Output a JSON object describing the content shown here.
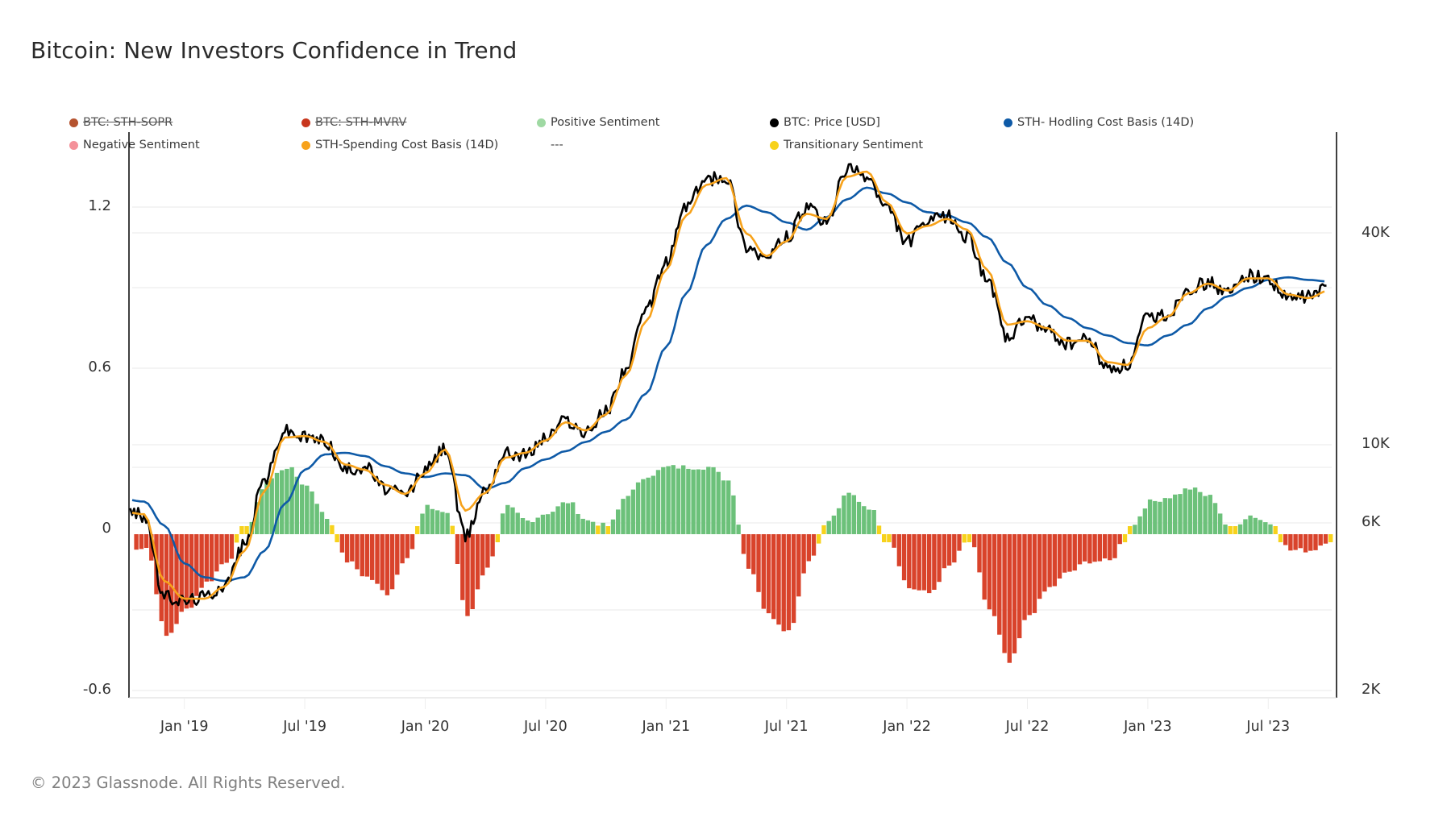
{
  "title": "Bitcoin: New Investors Confidence in Trend",
  "footer": "© 2023 Glassnode. All Rights Reserved.",
  "legend": [
    {
      "label": "BTC: STH-SOPR",
      "color": "#b5532f",
      "disabled": true
    },
    {
      "label": "BTC: STH-MVRV",
      "color": "#c8361d",
      "disabled": true
    },
    {
      "label": "Positive Sentiment",
      "color": "#9fd9a3",
      "disabled": false
    },
    {
      "label": "BTC: Price [USD]",
      "color": "#000000",
      "disabled": false
    },
    {
      "label": "STH- Hodling Cost Basis (14D)",
      "color": "#0e5aa7",
      "disabled": false
    },
    {
      "label": "Negative Sentiment",
      "color": "#f4919a",
      "disabled": false
    },
    {
      "label": "STH-Spending Cost Basis (14D)",
      "color": "#f7a21b",
      "disabled": false
    },
    {
      "label": "---",
      "color": null,
      "disabled": false
    },
    {
      "label": "Transitionary Sentiment",
      "color": "#f7d21b",
      "disabled": false
    }
  ],
  "chart_data": {
    "type": "line",
    "title": "Bitcoin: New Investors Confidence in Trend",
    "x_range": [
      "2018-10",
      "2023-10"
    ],
    "x_ticks": [
      "Jan '19",
      "Jul '19",
      "Jan '20",
      "Jul '20",
      "Jan '21",
      "Jul '21",
      "Jan '22",
      "Jul '22",
      "Jan '23",
      "Jul '23"
    ],
    "left_axis": {
      "ticks": [
        "1.2",
        "0.6",
        "0",
        "-0.6"
      ],
      "tick_values": [
        1.2,
        0.6,
        0,
        -0.6
      ],
      "range": [
        -0.6,
        1.4
      ]
    },
    "right_axis": {
      "scale": "log",
      "ticks": [
        "40K",
        "10K",
        "6K",
        "2K"
      ],
      "tick_values": [
        40000,
        10000,
        6000,
        2000
      ],
      "range": [
        2000,
        70000
      ]
    },
    "legend_position": "top",
    "colors": {
      "price": "#000000",
      "hodling_cost_basis": "#0e5aa7",
      "spending_cost_basis": "#f7a21b",
      "positive": "#6cc17a",
      "negative": "#d9432b",
      "transitionary": "#f7d21b"
    },
    "months": [
      "2018-10",
      "2018-11",
      "2018-12",
      "2019-01",
      "2019-02",
      "2019-03",
      "2019-04",
      "2019-05",
      "2019-06",
      "2019-07",
      "2019-08",
      "2019-09",
      "2019-10",
      "2019-11",
      "2019-12",
      "2020-01",
      "2020-02",
      "2020-03",
      "2020-04",
      "2020-05",
      "2020-06",
      "2020-07",
      "2020-08",
      "2020-09",
      "2020-10",
      "2020-11",
      "2020-12",
      "2021-01",
      "2021-02",
      "2021-03",
      "2021-04",
      "2021-05",
      "2021-06",
      "2021-07",
      "2021-08",
      "2021-09",
      "2021-10",
      "2021-11",
      "2021-12",
      "2022-01",
      "2022-02",
      "2022-03",
      "2022-04",
      "2022-05",
      "2022-06",
      "2022-07",
      "2022-08",
      "2022-09",
      "2022-10",
      "2022-11",
      "2022-12",
      "2023-01",
      "2023-02",
      "2023-03",
      "2023-04",
      "2023-05",
      "2023-06",
      "2023-07",
      "2023-08",
      "2023-09",
      "2023-10"
    ],
    "series": [
      {
        "name": "BTC: Price [USD]",
        "axis": "right",
        "values": [
          6500,
          6300,
          3700,
          3600,
          3700,
          4000,
          5200,
          8000,
          11000,
          10500,
          10300,
          8500,
          8700,
          7500,
          7200,
          8500,
          9800,
          5500,
          7500,
          9500,
          9400,
          10500,
          11800,
          10800,
          12500,
          16500,
          24000,
          33000,
          48000,
          57000,
          58000,
          37000,
          34000,
          39000,
          47000,
          43000,
          61000,
          58000,
          47000,
          38000,
          43000,
          45000,
          39000,
          30000,
          20000,
          23000,
          21000,
          19400,
          20000,
          16500,
          16800,
          23000,
          23500,
          28000,
          29000,
          27000,
          30500,
          29500,
          26000,
          26500,
          28000
        ]
      },
      {
        "name": "STH-Spending Cost Basis (14D)",
        "axis": "right",
        "values": [
          6450,
          6350,
          4100,
          3650,
          3650,
          3950,
          5000,
          7400,
          10500,
          10600,
          10200,
          8800,
          8500,
          7700,
          7250,
          8300,
          9700,
          6500,
          7300,
          9200,
          9500,
          10300,
          11600,
          11000,
          12200,
          15800,
          22500,
          31500,
          45000,
          55000,
          57500,
          40000,
          34500,
          38000,
          45500,
          44000,
          58000,
          60000,
          49000,
          40000,
          42000,
          44000,
          41000,
          31500,
          22000,
          22500,
          21500,
          19800,
          19800,
          17200,
          16900,
          21500,
          23200,
          27000,
          28800,
          27500,
          29800,
          29800,
          26800,
          26200,
          27500
        ]
      },
      {
        "name": "STH- Hodling Cost Basis (14D)",
        "axis": "right",
        "values": [
          7000,
          6900,
          5900,
          4600,
          4200,
          4100,
          4200,
          5000,
          6800,
          8500,
          9400,
          9500,
          9300,
          8700,
          8300,
          8100,
          8300,
          8200,
          7500,
          7800,
          8600,
          9100,
          9600,
          10200,
          10900,
          11800,
          14000,
          19000,
          27000,
          37000,
          44000,
          48000,
          46000,
          43000,
          41000,
          44500,
          50000,
          54000,
          52000,
          49000,
          46000,
          45000,
          43000,
          39000,
          33000,
          28000,
          25000,
          23000,
          21500,
          20500,
          19500,
          19200,
          20500,
          22000,
          24500,
          26500,
          28000,
          29500,
          30000,
          29500,
          29200
        ]
      },
      {
        "name": "STH-MVRV sentiment indicator",
        "axis": "left",
        "values": [
          -0.05,
          -0.05,
          -0.38,
          -0.28,
          -0.18,
          -0.1,
          0.02,
          0.2,
          0.25,
          0.18,
          0.06,
          -0.1,
          -0.16,
          -0.22,
          -0.08,
          0.1,
          0.08,
          -0.3,
          -0.12,
          0.1,
          0.05,
          0.08,
          0.12,
          0.05,
          0.03,
          0.15,
          0.22,
          0.25,
          0.25,
          0.25,
          0.2,
          -0.12,
          -0.3,
          -0.36,
          -0.1,
          0.05,
          0.15,
          0.1,
          -0.02,
          -0.2,
          -0.22,
          -0.12,
          -0.02,
          -0.28,
          -0.48,
          -0.3,
          -0.2,
          -0.14,
          -0.1,
          -0.1,
          0.02,
          0.12,
          0.14,
          0.17,
          0.14,
          0.02,
          0.07,
          0.04,
          -0.06,
          -0.06,
          -0.02
        ]
      }
    ]
  }
}
